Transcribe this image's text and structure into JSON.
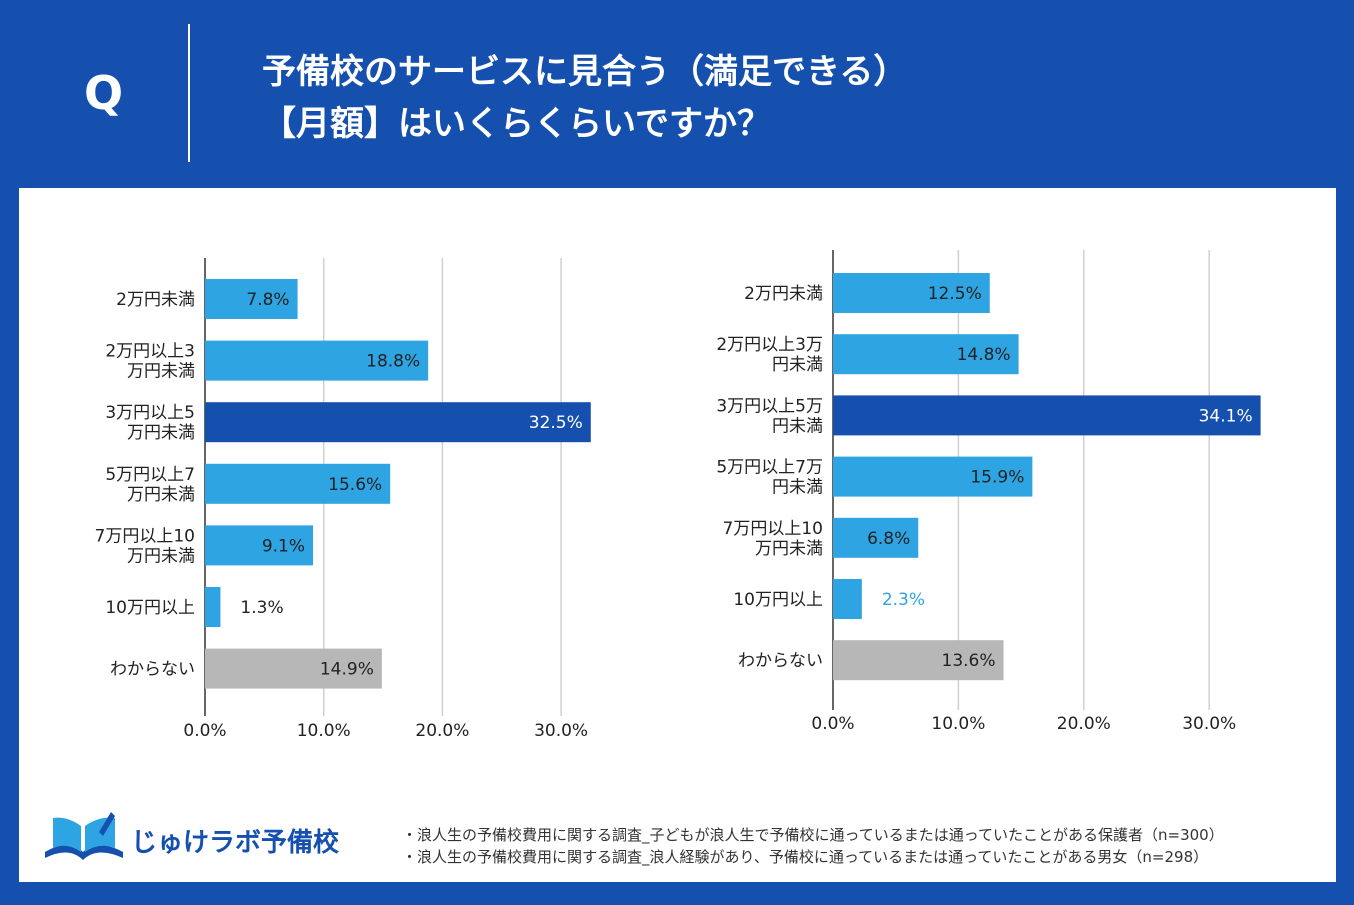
{
  "header": {
    "q_label": "Q",
    "title_line1": "予備校のサービスに見合う（満足できる）",
    "title_line2": "【月額】はいくらくらいですか？"
  },
  "colors": {
    "background": "#1650ae",
    "bar_default": "#2ea4e3",
    "bar_highlight": "#1650ae",
    "bar_unknown": "#b7b7b7",
    "grid": "#d0d0d0"
  },
  "chart_data": [
    {
      "type": "bar",
      "orientation": "horizontal",
      "categories": [
        "2万円未満",
        "2万円以上3\n万円未満",
        "3万円以上5\n万円未満",
        "5万円以上7\n万円未満",
        "7万円以上10\n万円未満",
        "10万円以上",
        "わからない"
      ],
      "values": [
        7.8,
        18.8,
        32.5,
        15.6,
        9.1,
        1.3,
        14.9
      ],
      "value_labels": [
        "7.8%",
        "18.8%",
        "32.5%",
        "15.6%",
        "9.1%",
        "1.3%",
        "14.9%"
      ],
      "highlight_index": 2,
      "unknown_index": 6,
      "xlim": [
        0,
        30
      ],
      "xticks": [
        "0.0%",
        "10.0%",
        "20.0%",
        "30.0%"
      ],
      "grid": true
    },
    {
      "type": "bar",
      "orientation": "horizontal",
      "categories": [
        "2万円未満",
        "2万円以上3万\n円未満",
        "3万円以上5万\n円未満",
        "5万円以上7万\n円未満",
        "7万円以上10\n万円未満",
        "10万円以上",
        "わからない"
      ],
      "values": [
        12.5,
        14.8,
        34.1,
        15.9,
        6.8,
        2.3,
        13.6
      ],
      "value_labels": [
        "12.5%",
        "14.8%",
        "34.1%",
        "15.9%",
        "6.8%",
        "2.3%",
        "13.6%"
      ],
      "highlight_index": 2,
      "unknown_index": 6,
      "xlim": [
        0,
        30
      ],
      "xticks": [
        "0.0%",
        "10.0%",
        "20.0%",
        "30.0%"
      ],
      "grid": true
    }
  ],
  "footer": {
    "logo_text": "じゅけラボ予備校",
    "note1": "・浪人生の予備校費用に関する調査_子どもが浪人生で予備校に通っているまたは通っていたことがある保護者（n=300）",
    "note2": "・浪人生の予備校費用に関する調査_浪人経験があり、予備校に通っているまたは通っていたことがある男女（n=298）"
  }
}
